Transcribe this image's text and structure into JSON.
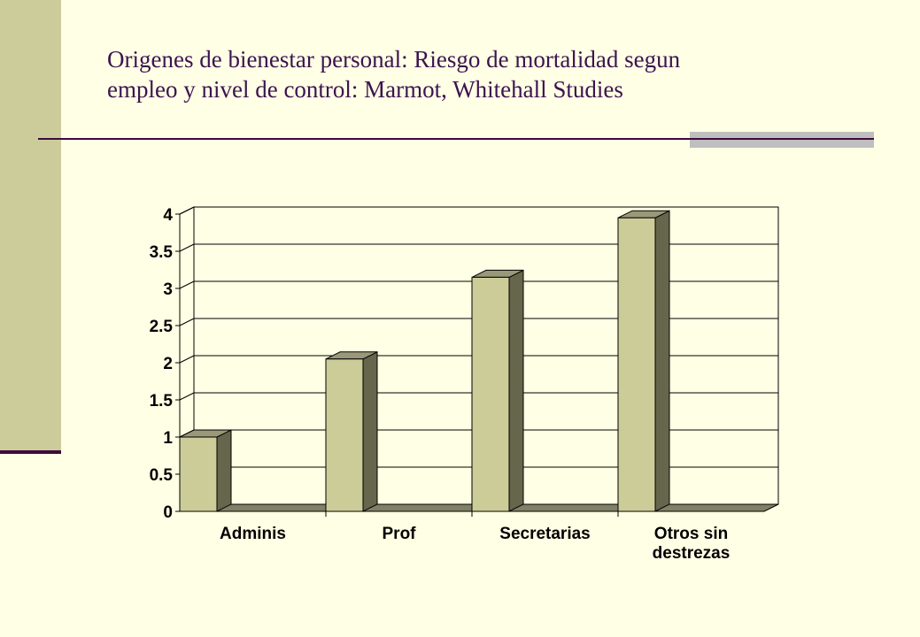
{
  "title_line1": "Origenes de bienestar personal: Riesgo de mortalidad segun",
  "title_line2": "empleo y nivel de control: Marmot, Whitehall Studies",
  "colors": {
    "background": "#FFFFE5",
    "side_bar": "#CCCC9A",
    "bar_front": "#CCCC99",
    "bar_side": "#66664D",
    "bar_top": "#99997A",
    "floor": "#808066",
    "title_text": "#3C1450",
    "rule": "#3C0A3C"
  },
  "chart_data": {
    "type": "bar",
    "categories": [
      [
        "Adminis"
      ],
      [
        "Prof"
      ],
      [
        "Secretarias"
      ],
      [
        "Otros sin",
        "destrezas"
      ]
    ],
    "values": [
      1,
      2.05,
      3.15,
      3.95
    ],
    "ylim": [
      0,
      4
    ],
    "yticks": [
      "0",
      "0.5",
      "1",
      "1.5",
      "2",
      "2.5",
      "3",
      "3.5",
      "4"
    ],
    "grid": true,
    "title": "",
    "xlabel": "",
    "ylabel": "",
    "style": "3d-column"
  }
}
